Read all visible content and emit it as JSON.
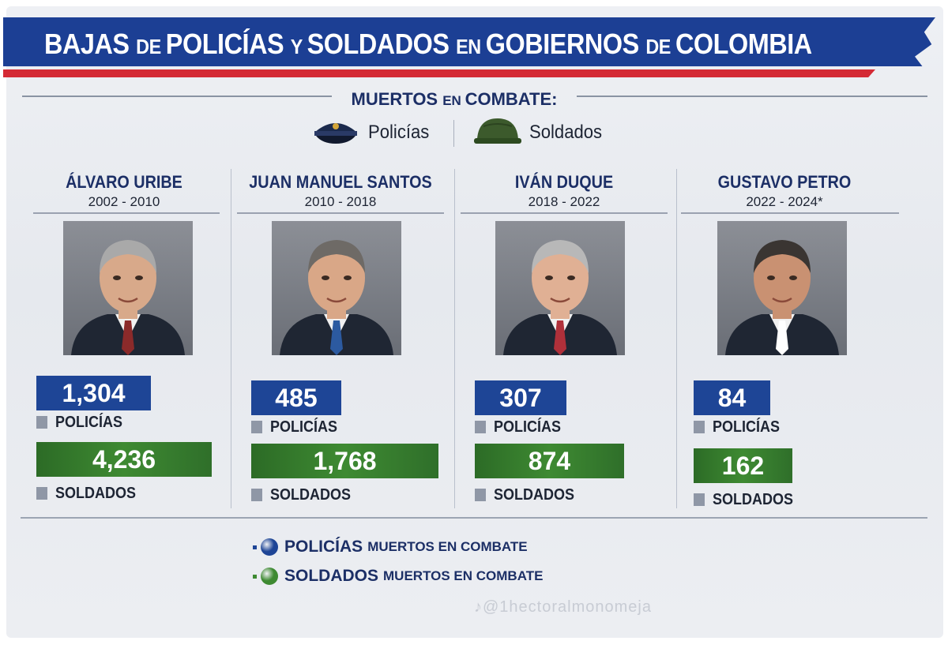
{
  "header": {
    "title_parts": [
      {
        "text": "BAJAS ",
        "small": false
      },
      {
        "text": "DE ",
        "small": true
      },
      {
        "text": "POLICÍAS ",
        "small": false
      },
      {
        "text": "Y ",
        "small": true
      },
      {
        "text": "SOLDADOS ",
        "small": false
      },
      {
        "text": "EN ",
        "small": true
      },
      {
        "text": "GOBIERNOS ",
        "small": false
      },
      {
        "text": "DE ",
        "small": true
      },
      {
        "text": "COLOMBIA",
        "small": false
      }
    ],
    "subtitle_big1": "MUERTOS ",
    "subtitle_small": "EN ",
    "subtitle_big2": "COMBATE:",
    "legend_policias": "Policías",
    "legend_soldados": "Soldados"
  },
  "colors": {
    "title_blue": "#1c3f94",
    "stripe_red": "#d42a35",
    "policias_blue": "#1e4596",
    "soldados_green": "#3e8a32"
  },
  "chart_data": {
    "type": "table",
    "categories": [
      "ÁLVARO URIBE",
      "JUAN MANUEL SANTOS",
      "IVÁN DUQUE",
      "GUSTAVO PETRO"
    ],
    "periods": [
      "2002 - 2010",
      "2010 - 2018",
      "2018 - 2022",
      "2022 - 2024*"
    ],
    "series": [
      {
        "name": "POLICÍAS",
        "values": [
          1304,
          485,
          307,
          84
        ],
        "labels": [
          "1,304",
          "485",
          "307",
          "84"
        ]
      },
      {
        "name": "SOLDADOS",
        "values": [
          4236,
          1768,
          874,
          162
        ],
        "labels": [
          "4,236",
          "1,768",
          "874",
          "162"
        ]
      }
    ]
  },
  "presidents": [
    {
      "name": "ÁLVARO URIBE",
      "years": "2002 - 2010",
      "policias": "1,304",
      "soldados": "4,236",
      "pol_label": "POLICÍAS",
      "sol_label": "SOLDADOS",
      "hair": "#a9a9a9",
      "skin": "#d8a98a",
      "tie": "#8b2a2a"
    },
    {
      "name": "JUAN MANUEL SANTOS",
      "years": "2010 - 2018",
      "policias": "485",
      "soldados": "1,768",
      "pol_label": "POLICÍAS",
      "sol_label": "SOLDADOS",
      "hair": "#6e6a66",
      "skin": "#d9a787",
      "tie": "#2c5aa0"
    },
    {
      "name": "IVÁN DUQUE",
      "years": "2018 - 2022",
      "policias": "307",
      "soldados": "874",
      "pol_label": "POLICÍAS",
      "sol_label": "SOLDADOS",
      "hair": "#b8b8b8",
      "skin": "#e0b094",
      "tie": "#b0303a"
    },
    {
      "name": "GUSTAVO PETRO",
      "years": "2022 - 2024*",
      "policias": "84",
      "soldados": "162",
      "pol_label": "POLICÍAS",
      "sol_label": "SOLDADOS",
      "hair": "#3a3532",
      "skin": "#c99172",
      "tie": "#ffffff"
    }
  ],
  "bottom_legend": [
    {
      "big": "POLICÍAS",
      "small": "MUERTOS EN COMBATE",
      "color": "#1e4596"
    },
    {
      "big": "SOLDADOS",
      "small": "MUERTOS EN COMBATE",
      "color": "#3e8a32"
    }
  ],
  "watermark": "♪@1hectoralmonomeja"
}
